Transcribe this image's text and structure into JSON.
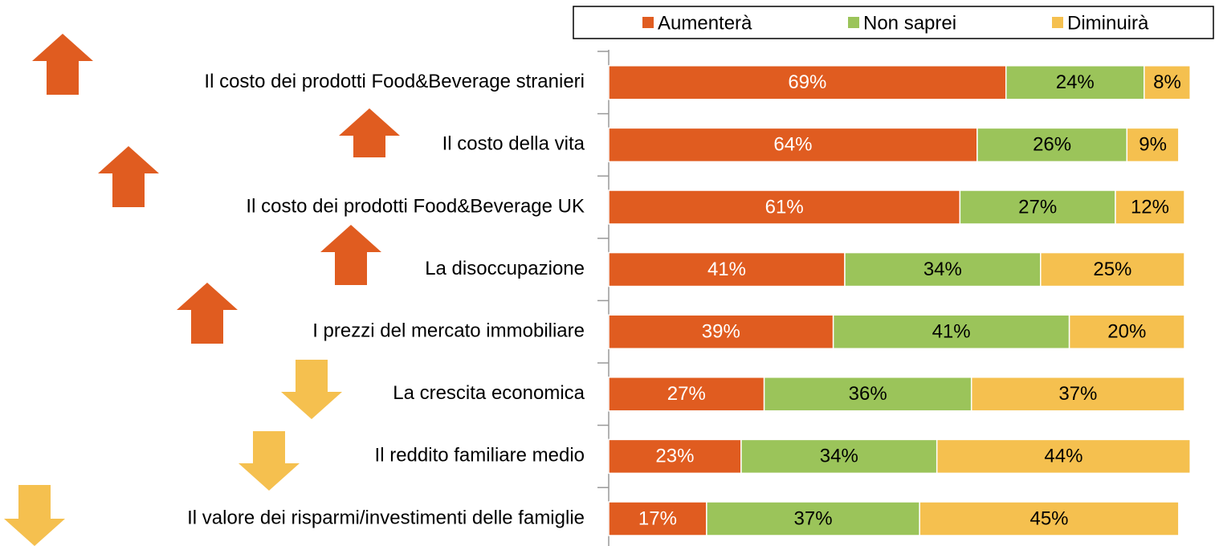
{
  "chart_data": {
    "type": "stacked-bar",
    "orientation": "horizontal",
    "categories": [
      "Il costo dei prodotti Food&Beverage stranieri",
      "Il costo della vita",
      "Il costo dei prodotti Food&Beverage UK",
      "La disoccupazione",
      "I prezzi del mercato immobiliare",
      "La crescita economica",
      "Il reddito familiare medio",
      "Il valore dei risparmi/investimenti delle famiglie"
    ],
    "series": [
      {
        "name": "Aumenterà",
        "color": "#e05c20",
        "values": [
          69,
          64,
          61,
          41,
          39,
          27,
          23,
          17
        ],
        "value_labels": [
          "69%",
          "64%",
          "61%",
          "41%",
          "39%",
          "27%",
          "23%",
          "17%"
        ]
      },
      {
        "name": "Non saprei",
        "color": "#9bc45a",
        "values": [
          24,
          26,
          27,
          34,
          41,
          36,
          34,
          37
        ],
        "value_labels": [
          "24%",
          "26%",
          "27%",
          "34%",
          "41%",
          "36%",
          "34%",
          "37%"
        ]
      },
      {
        "name": "Diminuirà",
        "color": "#f5c04f",
        "values": [
          8,
          9,
          12,
          25,
          20,
          37,
          44,
          45
        ],
        "value_labels": [
          "8%",
          "9%",
          "12%",
          "25%",
          "20%",
          "37%",
          "44%",
          "45%"
        ]
      }
    ],
    "xlim": [
      0,
      100
    ],
    "legend": "top"
  }
}
